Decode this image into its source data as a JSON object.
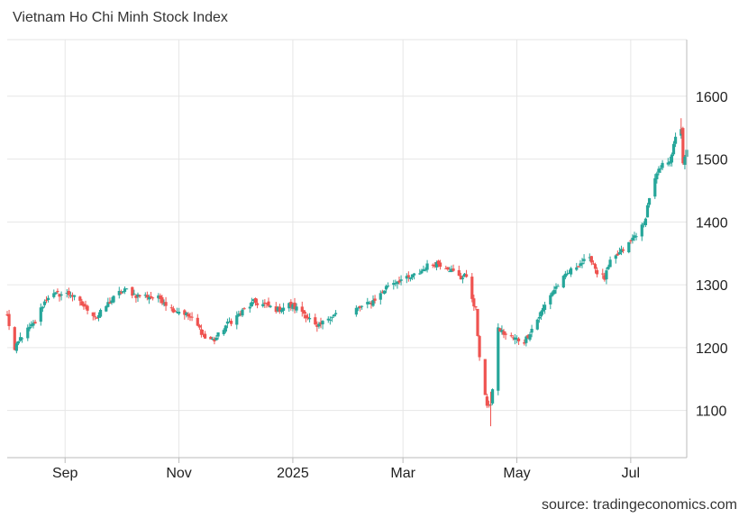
{
  "title": "Vietnam Ho Chi Minh Stock Index",
  "source": "source: tradingeconomics.com",
  "chart_data": {
    "type": "candlestick",
    "title": "Vietnam Ho Chi Minh Stock Index",
    "xlabel": "",
    "ylabel": "",
    "x_range": [
      "2024-08-01",
      "2025-07-31"
    ],
    "ylim": [
      1025,
      1690
    ],
    "grid": true,
    "up_color": "#26a69a",
    "down_color": "#ef5350",
    "y_ticks": [
      1100,
      1200,
      1300,
      1400,
      1500,
      1600
    ],
    "x_ticks": [
      {
        "label": "Sep",
        "date": "2024-09-01"
      },
      {
        "label": "Nov",
        "date": "2024-11-01"
      },
      {
        "label": "2025",
        "date": "2025-01-01"
      },
      {
        "label": "Mar",
        "date": "2025-03-01"
      },
      {
        "label": "May",
        "date": "2025-05-01"
      },
      {
        "label": "Jul",
        "date": "2025-07-01"
      }
    ],
    "close_series": [
      [
        "2024-08-01",
        1250
      ],
      [
        "2024-08-05",
        1195
      ],
      [
        "2024-08-08",
        1215
      ],
      [
        "2024-08-12",
        1228
      ],
      [
        "2024-08-16",
        1240
      ],
      [
        "2024-08-20",
        1268
      ],
      [
        "2024-08-23",
        1282
      ],
      [
        "2024-08-28",
        1285
      ],
      [
        "2024-09-04",
        1285
      ],
      [
        "2024-09-10",
        1268
      ],
      [
        "2024-09-13",
        1262
      ],
      [
        "2024-09-18",
        1248
      ],
      [
        "2024-09-24",
        1270
      ],
      [
        "2024-09-30",
        1287
      ],
      [
        "2024-10-04",
        1292
      ],
      [
        "2024-10-09",
        1283
      ],
      [
        "2024-10-15",
        1282
      ],
      [
        "2024-10-22",
        1278
      ],
      [
        "2024-10-28",
        1262
      ],
      [
        "2024-11-04",
        1255
      ],
      [
        "2024-11-08",
        1245
      ],
      [
        "2024-11-12",
        1230
      ],
      [
        "2024-11-15",
        1215
      ],
      [
        "2024-11-20",
        1212
      ],
      [
        "2024-11-26",
        1235
      ],
      [
        "2024-12-02",
        1250
      ],
      [
        "2024-12-06",
        1260
      ],
      [
        "2024-12-11",
        1272
      ],
      [
        "2024-12-17",
        1268
      ],
      [
        "2024-12-24",
        1260
      ],
      [
        "2024-12-30",
        1268
      ],
      [
        "2025-01-06",
        1258
      ],
      [
        "2025-01-10",
        1245
      ],
      [
        "2025-01-14",
        1230
      ],
      [
        "2025-01-20",
        1248
      ],
      [
        "2025-01-25",
        1255
      ],
      [
        "2025-02-05",
        1262
      ],
      [
        "2025-02-11",
        1270
      ],
      [
        "2025-02-17",
        1285
      ],
      [
        "2025-02-21",
        1300
      ],
      [
        "2025-02-26",
        1307
      ],
      [
        "2025-03-04",
        1310
      ],
      [
        "2025-03-10",
        1320
      ],
      [
        "2025-03-14",
        1330
      ],
      [
        "2025-03-19",
        1335
      ],
      [
        "2025-03-25",
        1328
      ],
      [
        "2025-03-28",
        1320
      ],
      [
        "2025-04-01",
        1310
      ],
      [
        "2025-04-03",
        1318
      ],
      [
        "2025-04-09",
        1260
      ],
      [
        "2025-04-11",
        1180
      ],
      [
        "2025-04-15",
        1110
      ],
      [
        "2025-04-17",
        1105
      ],
      [
        "2025-04-21",
        1230
      ],
      [
        "2025-04-25",
        1220
      ],
      [
        "2025-04-29",
        1215
      ],
      [
        "2025-05-05",
        1210
      ],
      [
        "2025-05-08",
        1225
      ],
      [
        "2025-05-13",
        1250
      ],
      [
        "2025-05-19",
        1285
      ],
      [
        "2025-05-23",
        1300
      ],
      [
        "2025-05-29",
        1320
      ],
      [
        "2025-06-04",
        1335
      ],
      [
        "2025-06-10",
        1340
      ],
      [
        "2025-06-13",
        1320
      ],
      [
        "2025-06-17",
        1310
      ],
      [
        "2025-06-20",
        1335
      ],
      [
        "2025-06-25",
        1350
      ],
      [
        "2025-06-30",
        1365
      ],
      [
        "2025-07-03",
        1378
      ],
      [
        "2025-07-08",
        1395
      ],
      [
        "2025-07-11",
        1440
      ],
      [
        "2025-07-15",
        1475
      ],
      [
        "2025-07-18",
        1490
      ],
      [
        "2025-07-22",
        1500
      ],
      [
        "2025-07-24",
        1520
      ],
      [
        "2025-07-26",
        1545
      ],
      [
        "2025-07-28",
        1550
      ],
      [
        "2025-07-29",
        1495
      ],
      [
        "2025-07-30",
        1500
      ],
      [
        "2025-07-31",
        1512
      ]
    ],
    "last_value": 1512,
    "high_value": 1565,
    "low_value": 1075
  }
}
